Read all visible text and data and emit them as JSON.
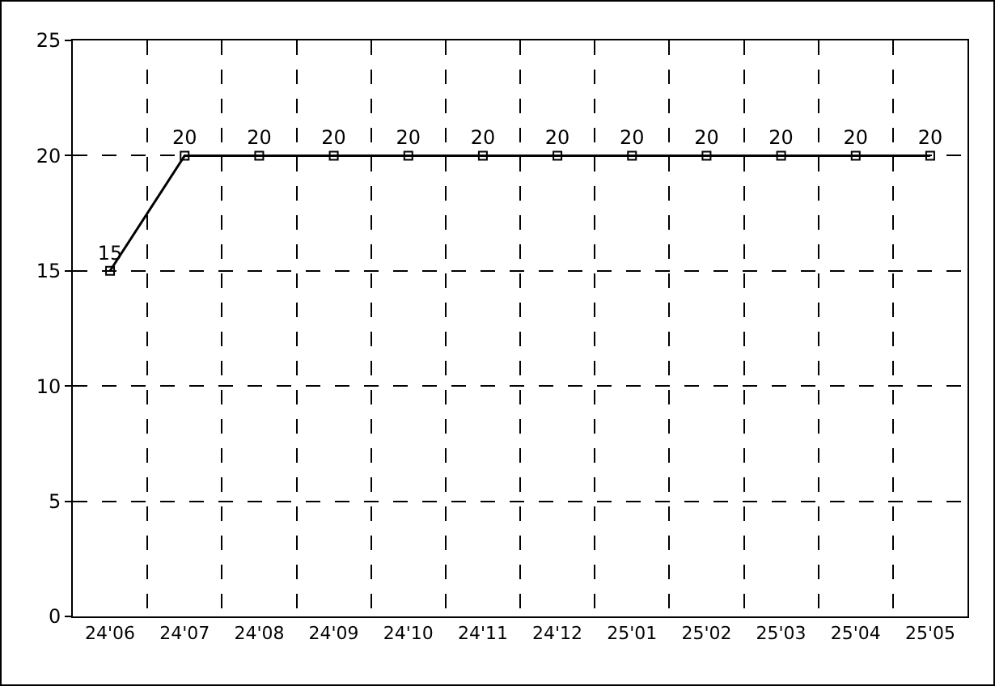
{
  "chart_data": {
    "type": "line",
    "categories": [
      "24'06",
      "24'07",
      "24'08",
      "24'09",
      "24'10",
      "24'11",
      "24'12",
      "25'01",
      "25'02",
      "25'03",
      "25'04",
      "25'05"
    ],
    "series": [
      {
        "color": "#000000",
        "values": [
          15,
          20,
          20,
          20,
          20,
          20,
          20,
          20,
          20,
          20,
          20,
          20
        ]
      }
    ],
    "ylim": [
      0,
      25
    ],
    "yticks": [
      0,
      5,
      10,
      15,
      20,
      25
    ],
    "grid": true,
    "marker": "square",
    "line_style": "solid",
    "data_labels": true
  }
}
